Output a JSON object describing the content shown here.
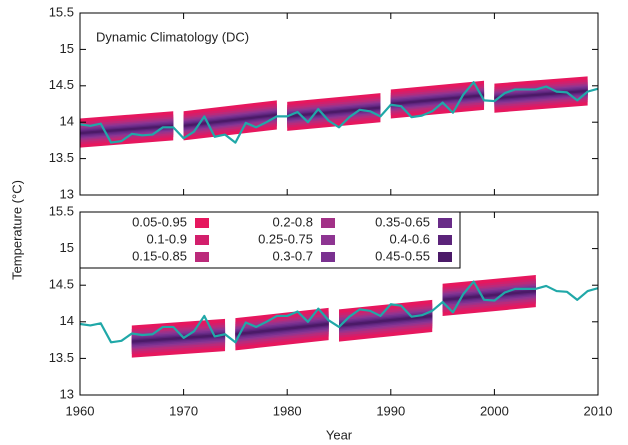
{
  "chart_data": [
    {
      "type": "fan",
      "title": "Dynamic Climatology (DC)",
      "ylabel": "Temperature (°C)",
      "xlim": [
        1960,
        2010
      ],
      "xticks": [
        1960,
        1970,
        1980,
        1990,
        2000,
        2010
      ],
      "ylim": [
        13,
        15.5
      ],
      "yticks": [
        13,
        13.5,
        14,
        14.5,
        15,
        15.5
      ],
      "bands": [
        {
          "name": "0.05-0.95",
          "color": "#e6175e",
          "halfwidth": 0.2
        },
        {
          "name": "0.1-0.9",
          "color": "#d21f6c",
          "halfwidth": 0.155
        },
        {
          "name": "0.15-0.85",
          "color": "#bb2a7a",
          "halfwidth": 0.125
        },
        {
          "name": "0.2-0.8",
          "color": "#a23187",
          "halfwidth": 0.1
        },
        {
          "name": "0.25-0.75",
          "color": "#8e3592",
          "halfwidth": 0.08
        },
        {
          "name": "0.3-0.7",
          "color": "#7a3190",
          "halfwidth": 0.063
        },
        {
          "name": "0.35-0.65",
          "color": "#692c88",
          "halfwidth": 0.046
        },
        {
          "name": "0.4-0.6",
          "color": "#5b237a",
          "halfwidth": 0.03
        },
        {
          "name": "0.45-0.55",
          "color": "#4b1a68",
          "halfwidth": 0.015
        }
      ],
      "blocks": [
        {
          "x": [
            1960,
            1969
          ],
          "median": [
            13.85,
            13.95
          ]
        },
        {
          "x": [
            1970,
            1979
          ],
          "median": [
            13.95,
            14.1
          ]
        },
        {
          "x": [
            1980,
            1989
          ],
          "median": [
            14.08,
            14.2
          ]
        },
        {
          "x": [
            1990,
            1999
          ],
          "median": [
            14.25,
            14.37
          ]
        },
        {
          "x": [
            2000,
            2009
          ],
          "median": [
            14.33,
            14.43
          ]
        }
      ],
      "x": [
        1960,
        1961,
        1962,
        1963,
        1964,
        1965,
        1966,
        1967,
        1968,
        1969,
        1970,
        1971,
        1972,
        1973,
        1974,
        1975,
        1976,
        1977,
        1978,
        1979,
        1980,
        1981,
        1982,
        1983,
        1984,
        1985,
        1986,
        1987,
        1988,
        1989,
        1990,
        1991,
        1992,
        1993,
        1994,
        1995,
        1996,
        1997,
        1998,
        1999,
        2000,
        2001,
        2002,
        2003,
        2004,
        2005,
        2006,
        2007,
        2008,
        2009,
        2010
      ],
      "series": [
        {
          "color": "#20a8a8",
          "values": [
            13.97,
            13.95,
            13.98,
            13.72,
            13.74,
            13.84,
            13.82,
            13.83,
            13.93,
            13.93,
            13.78,
            13.87,
            14.08,
            13.8,
            13.83,
            13.72,
            13.99,
            13.93,
            14.0,
            14.08,
            14.08,
            14.14,
            14.0,
            14.18,
            14.02,
            13.93,
            14.07,
            14.17,
            14.15,
            14.08,
            14.24,
            14.22,
            14.07,
            14.09,
            14.15,
            14.27,
            14.13,
            14.38,
            14.55,
            14.3,
            14.29,
            14.4,
            14.45,
            14.45,
            14.45,
            14.49,
            14.42,
            14.41,
            14.3,
            14.42,
            14.46
          ]
        }
      ]
    },
    {
      "type": "fan",
      "xlabel": "Year",
      "xlim": [
        1960,
        2010
      ],
      "xticks": [
        1960,
        1970,
        1980,
        1990,
        2000,
        2010
      ],
      "ylim": [
        13,
        15.5
      ],
      "yticks": [
        13,
        13.5,
        14,
        14.5,
        15,
        15.5
      ],
      "legend": "upper left",
      "bands": [
        {
          "name": "0.05-0.95",
          "color": "#e6175e",
          "halfwidth": 0.22
        },
        {
          "name": "0.1-0.9",
          "color": "#d21f6c",
          "halfwidth": 0.17
        },
        {
          "name": "0.15-0.85",
          "color": "#bb2a7a",
          "halfwidth": 0.14
        },
        {
          "name": "0.2-0.8",
          "color": "#a23187",
          "halfwidth": 0.11
        },
        {
          "name": "0.25-0.75",
          "color": "#8e3592",
          "halfwidth": 0.09
        },
        {
          "name": "0.3-0.7",
          "color": "#7a3190",
          "halfwidth": 0.07
        },
        {
          "name": "0.35-0.65",
          "color": "#692c88",
          "halfwidth": 0.05
        },
        {
          "name": "0.4-0.6",
          "color": "#5b237a",
          "halfwidth": 0.033
        },
        {
          "name": "0.45-0.55",
          "color": "#4b1a68",
          "halfwidth": 0.017
        }
      ],
      "blocks": [
        {
          "x": [
            1965,
            1974
          ],
          "median": [
            13.73,
            13.82
          ]
        },
        {
          "x": [
            1975,
            1984
          ],
          "median": [
            13.83,
            13.97
          ]
        },
        {
          "x": [
            1985,
            1994
          ],
          "median": [
            13.95,
            14.08
          ]
        },
        {
          "x": [
            1995,
            2004
          ],
          "median": [
            14.3,
            14.42
          ]
        }
      ],
      "x": [
        1960,
        1961,
        1962,
        1963,
        1964,
        1965,
        1966,
        1967,
        1968,
        1969,
        1970,
        1971,
        1972,
        1973,
        1974,
        1975,
        1976,
        1977,
        1978,
        1979,
        1980,
        1981,
        1982,
        1983,
        1984,
        1985,
        1986,
        1987,
        1988,
        1989,
        1990,
        1991,
        1992,
        1993,
        1994,
        1995,
        1996,
        1997,
        1998,
        1999,
        2000,
        2001,
        2002,
        2003,
        2004,
        2005,
        2006,
        2007,
        2008,
        2009,
        2010
      ],
      "series": [
        {
          "color": "#20a8a8",
          "values": [
            13.97,
            13.95,
            13.98,
            13.72,
            13.74,
            13.84,
            13.82,
            13.83,
            13.93,
            13.93,
            13.78,
            13.87,
            14.08,
            13.8,
            13.83,
            13.72,
            13.99,
            13.93,
            14.0,
            14.08,
            14.08,
            14.14,
            14.0,
            14.18,
            14.02,
            13.93,
            14.07,
            14.17,
            14.15,
            14.08,
            14.24,
            14.22,
            14.07,
            14.09,
            14.15,
            14.27,
            14.13,
            14.38,
            14.55,
            14.3,
            14.29,
            14.4,
            14.45,
            14.45,
            14.45,
            14.49,
            14.42,
            14.41,
            14.3,
            14.42,
            14.46
          ]
        }
      ]
    }
  ]
}
